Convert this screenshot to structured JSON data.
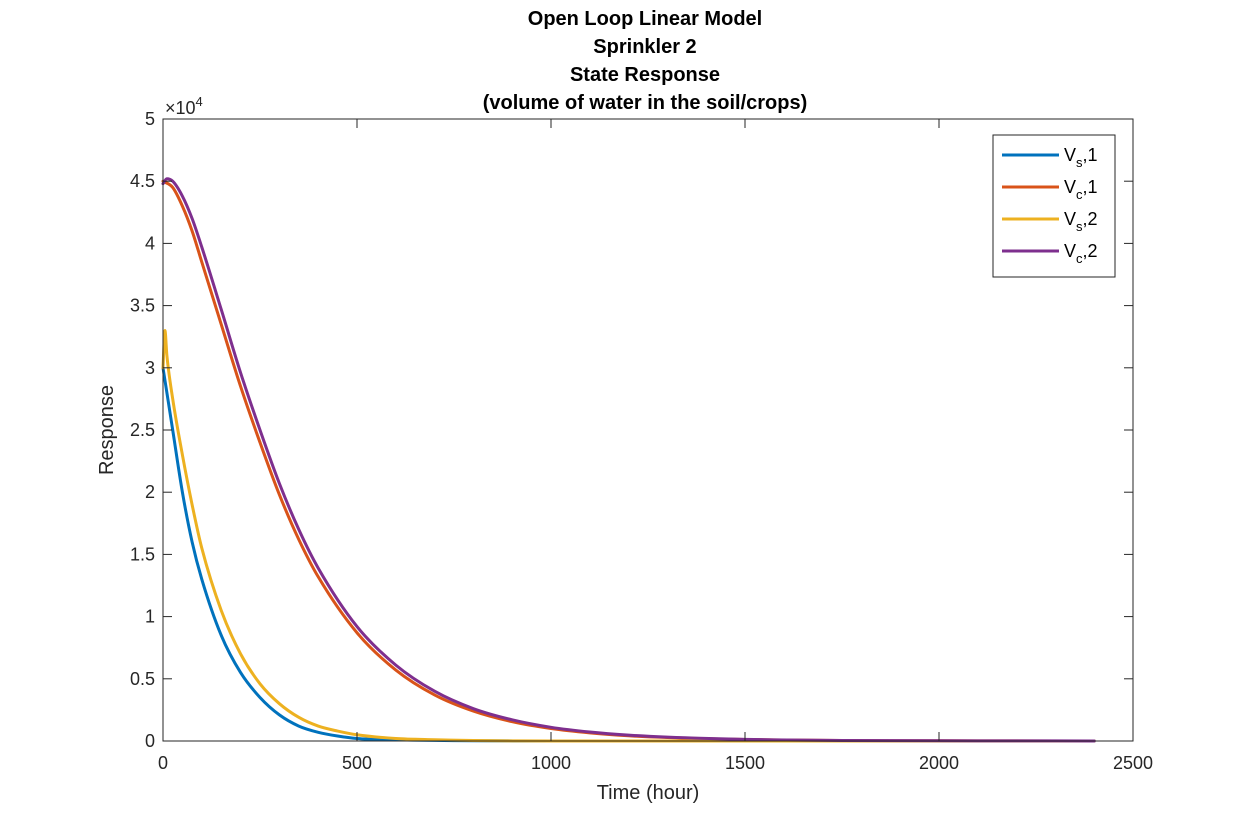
{
  "chart_data": {
    "type": "line",
    "title_lines": [
      "Open Loop Linear Model",
      "Sprinkler 2",
      "State Response",
      "(volume of water in the soil/crops)"
    ],
    "xlabel": "Time (hour)",
    "ylabel": "Response",
    "xlim": [
      0,
      2500
    ],
    "ylim": [
      0,
      5
    ],
    "y_multiplier": "×10",
    "y_multiplier_exponent": "4",
    "x_ticks": [
      0,
      500,
      1000,
      1500,
      2000,
      2500
    ],
    "x_tick_labels": [
      "0",
      "500",
      "1000",
      "1500",
      "2000",
      "2500"
    ],
    "y_ticks": [
      0,
      0.5,
      1,
      1.5,
      2,
      2.5,
      3,
      3.5,
      4,
      4.5,
      5
    ],
    "y_tick_labels": [
      "0",
      "0.5",
      "1",
      "1.5",
      "2",
      "2.5",
      "3",
      "3.5",
      "4",
      "4.5",
      "5"
    ],
    "grid": false,
    "legend_position": "top-right",
    "series": [
      {
        "legend_main": "V",
        "legend_sub": "s",
        "legend_suffix": ",1",
        "color": "#0072BD",
        "x": [
          0,
          25,
          50,
          75,
          100,
          150,
          200,
          250,
          300,
          350,
          400,
          450,
          500,
          600,
          700,
          800,
          1000,
          1500,
          2000,
          2400
        ],
        "y": [
          3.0,
          2.5,
          2.0,
          1.6,
          1.3,
          0.85,
          0.55,
          0.35,
          0.21,
          0.12,
          0.07,
          0.04,
          0.02,
          0.01,
          0.005,
          0.002,
          0.0,
          0.0,
          0.0,
          0.0
        ]
      },
      {
        "legend_main": "V",
        "legend_sub": "c",
        "legend_suffix": ",1",
        "color": "#D95319",
        "x": [
          0,
          25,
          50,
          75,
          100,
          150,
          200,
          250,
          300,
          350,
          400,
          500,
          600,
          700,
          800,
          900,
          1000,
          1100,
          1200,
          1300,
          1500,
          1750,
          2000,
          2200,
          2400
        ],
        "y": [
          4.5,
          4.45,
          4.3,
          4.1,
          3.85,
          3.35,
          2.85,
          2.4,
          1.98,
          1.62,
          1.32,
          0.87,
          0.57,
          0.37,
          0.24,
          0.155,
          0.1,
          0.065,
          0.042,
          0.028,
          0.012,
          0.004,
          0.0015,
          0.0007,
          0.0003
        ]
      },
      {
        "legend_main": "V",
        "legend_sub": "s",
        "legend_suffix": ",2",
        "color": "#EDB120",
        "x": [
          0,
          5,
          10,
          25,
          50,
          75,
          100,
          150,
          200,
          250,
          300,
          350,
          400,
          450,
          500,
          600,
          700,
          800,
          1000,
          1500,
          2000,
          2400
        ],
        "y": [
          3.0,
          3.3,
          3.1,
          2.75,
          2.3,
          1.9,
          1.55,
          1.05,
          0.7,
          0.46,
          0.3,
          0.19,
          0.12,
          0.08,
          0.05,
          0.02,
          0.01,
          0.004,
          0.0,
          0.0,
          0.0,
          0.0
        ]
      },
      {
        "legend_main": "V",
        "legend_sub": "c",
        "legend_suffix": ",2",
        "color": "#7E2F8E",
        "x": [
          0,
          10,
          25,
          50,
          75,
          100,
          150,
          200,
          250,
          300,
          350,
          400,
          500,
          600,
          700,
          800,
          900,
          1000,
          1100,
          1200,
          1300,
          1500,
          1750,
          2000,
          2200,
          2400
        ],
        "y": [
          4.48,
          4.52,
          4.5,
          4.38,
          4.2,
          3.97,
          3.47,
          2.96,
          2.5,
          2.07,
          1.7,
          1.39,
          0.92,
          0.61,
          0.4,
          0.26,
          0.17,
          0.11,
          0.072,
          0.047,
          0.031,
          0.013,
          0.0045,
          0.0016,
          0.0008,
          0.0003
        ]
      }
    ]
  }
}
